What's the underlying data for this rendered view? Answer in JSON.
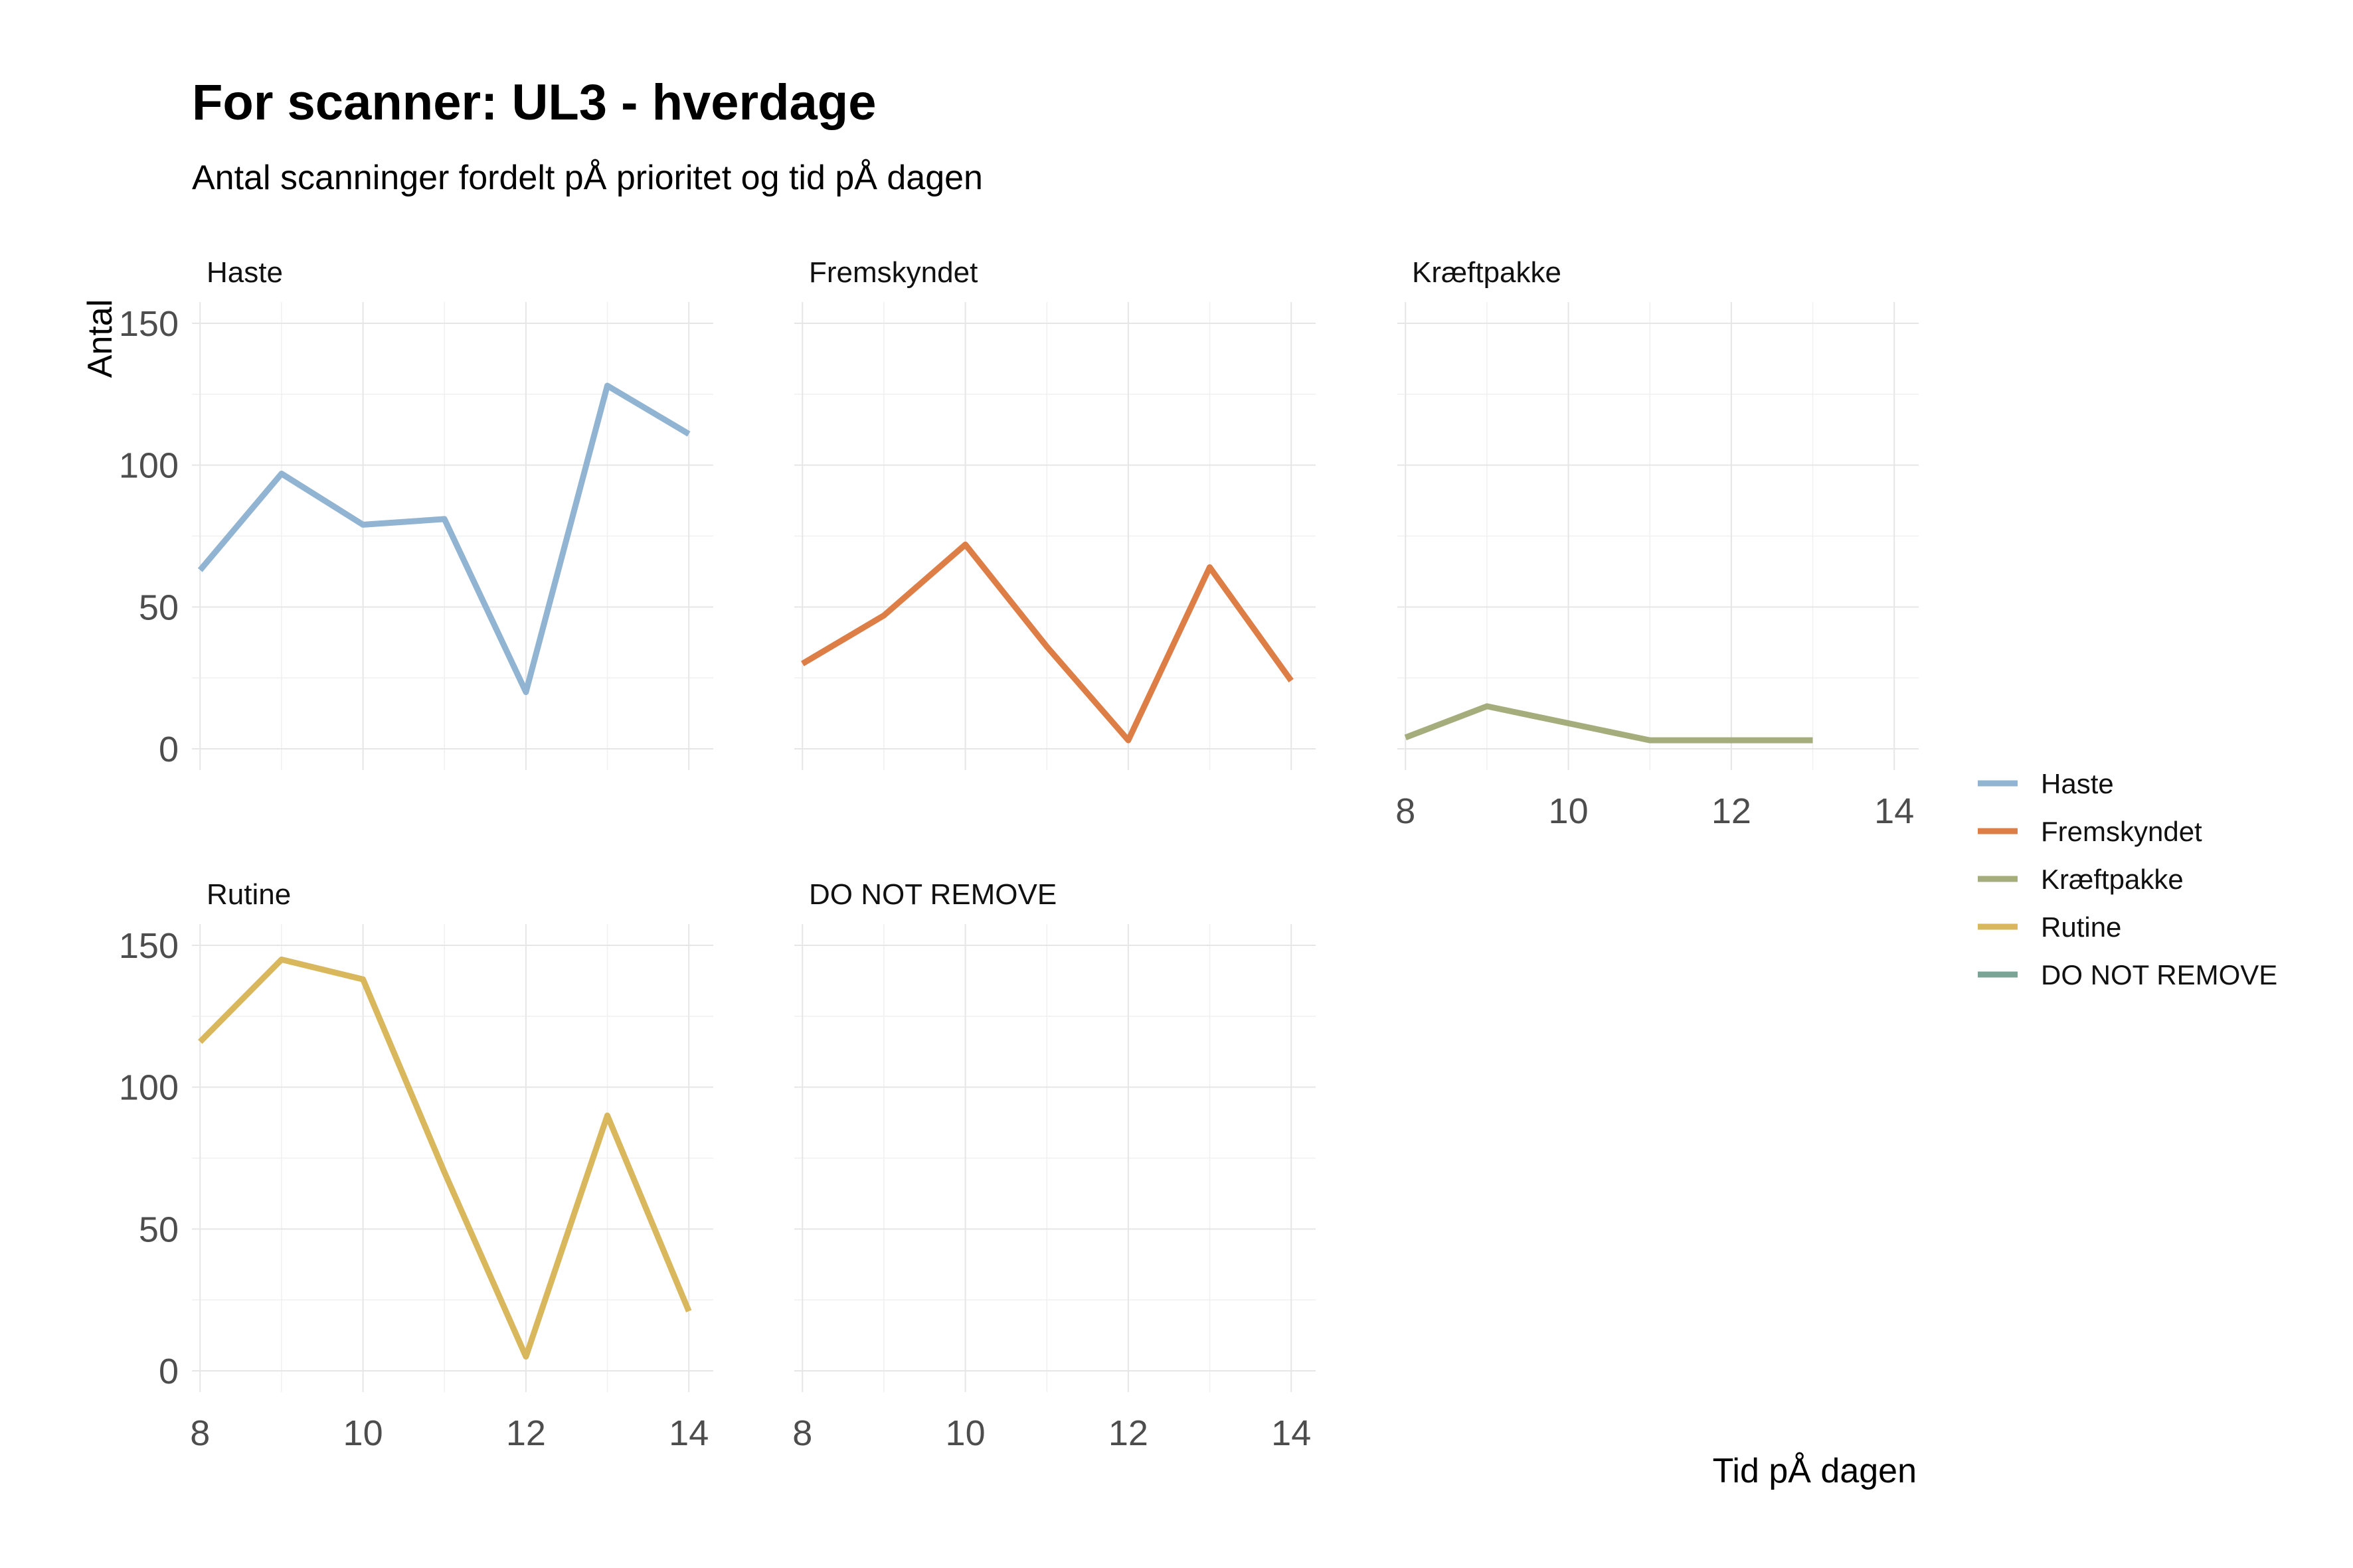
{
  "title": "For scanner: UL3 - hverdage",
  "subtitle": "Antal scanninger fordelt pÅ prioritet og tid pÅ dagen",
  "chart_data": {
    "type": "line",
    "facet": "wrap",
    "title": "For scanner: UL3 - hverdage",
    "subtitle": "Antal scanninger fordelt pÅ prioritet og tid pÅ dagen",
    "xlabel": "Tid pÅ dagen",
    "ylabel": "Antal",
    "xlim": [
      7.9,
      14.3
    ],
    "ylim": [
      0,
      150
    ],
    "x_ticks": [
      8,
      10,
      12,
      14
    ],
    "y_ticks": [
      0,
      50,
      100,
      150
    ],
    "grid": true,
    "legend_position": "right",
    "panels": [
      {
        "name": "Haste",
        "color": "#91b4d2",
        "x": [
          8,
          9,
          10,
          11,
          12,
          13,
          14
        ],
        "y": [
          63,
          97,
          79,
          81,
          20,
          128,
          111
        ]
      },
      {
        "name": "Fremskyndet",
        "color": "#de7e47",
        "x": [
          8,
          9,
          10,
          11,
          12,
          13,
          14
        ],
        "y": [
          30,
          47,
          72,
          36,
          3,
          64,
          24
        ]
      },
      {
        "name": "Kræftpakke",
        "color": "#a5ad7c",
        "x": [
          8,
          9,
          10,
          11,
          12,
          13
        ],
        "y": [
          4,
          15,
          9,
          3,
          3,
          3
        ]
      },
      {
        "name": "Rutine",
        "color": "#d9b75c",
        "x": [
          8,
          9,
          10,
          11,
          12,
          13,
          14
        ],
        "y": [
          116,
          145,
          138,
          70,
          5,
          90,
          21
        ]
      },
      {
        "name": "DO NOT REMOVE",
        "color": "#7aa596",
        "x": [],
        "y": []
      }
    ]
  }
}
